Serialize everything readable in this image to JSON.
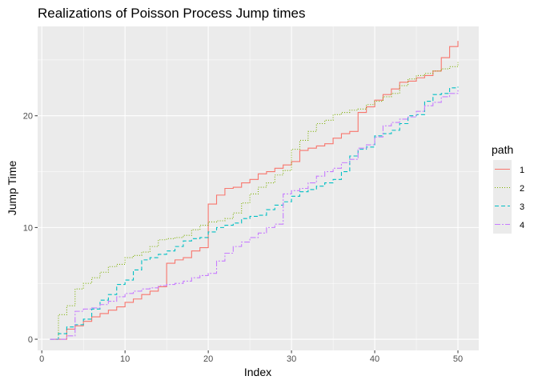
{
  "chart_data": {
    "type": "line",
    "step": true,
    "title": "Realizations of Poisson Process Jump times",
    "xlabel": "Index",
    "ylabel": "Jump Time",
    "xlim": [
      -0.5,
      52.5
    ],
    "ylim": [
      -1.0,
      28.0
    ],
    "x_ticks": [
      0,
      10,
      20,
      30,
      40,
      50
    ],
    "x_tick_labels": [
      "0",
      "10",
      "20",
      "30",
      "40",
      "50"
    ],
    "y_ticks": [
      0,
      10,
      20
    ],
    "y_tick_labels": [
      "0",
      "10",
      "20"
    ],
    "grid": true,
    "legend": {
      "title": "path",
      "position": "right"
    },
    "series": [
      {
        "name": "1",
        "color": "#F8766D",
        "dash": "solid",
        "x": [
          1,
          2,
          3,
          4,
          5,
          6,
          7,
          8,
          9,
          10,
          11,
          12,
          13,
          14,
          15,
          16,
          17,
          18,
          19,
          20,
          21,
          22,
          23,
          24,
          25,
          26,
          27,
          28,
          29,
          30,
          31,
          32,
          33,
          34,
          35,
          36,
          37,
          38,
          39,
          40,
          41,
          42,
          43,
          44,
          45,
          46,
          47,
          48,
          49,
          50
        ],
        "y": [
          0.0,
          0.0,
          0.9,
          1.2,
          1.6,
          2.0,
          2.3,
          2.6,
          2.9,
          3.3,
          3.6,
          4.0,
          4.3,
          4.7,
          6.8,
          7.1,
          7.3,
          7.9,
          8.2,
          12.1,
          12.9,
          13.5,
          13.6,
          14.0,
          14.3,
          14.8,
          15.0,
          15.3,
          15.6,
          15.9,
          16.9,
          17.1,
          17.3,
          17.5,
          18.0,
          18.4,
          18.6,
          20.3,
          20.8,
          21.4,
          21.9,
          22.4,
          23.0,
          23.1,
          23.4,
          23.6,
          24.0,
          25.2,
          26.2,
          26.7
        ]
      },
      {
        "name": "2",
        "color": "#7CAE00",
        "dash": "1,2",
        "x": [
          1,
          2,
          3,
          4,
          5,
          6,
          7,
          8,
          9,
          10,
          11,
          12,
          13,
          14,
          15,
          16,
          17,
          18,
          19,
          20,
          21,
          22,
          23,
          24,
          25,
          26,
          27,
          28,
          29,
          30,
          31,
          32,
          33,
          34,
          35,
          36,
          37,
          38,
          39,
          40,
          41,
          42,
          43,
          44,
          45,
          46,
          47,
          48,
          49,
          50
        ],
        "y": [
          0.0,
          2.2,
          3.0,
          4.5,
          5.0,
          5.5,
          6.0,
          6.5,
          6.7,
          7.3,
          7.5,
          7.8,
          8.3,
          8.9,
          9.0,
          9.1,
          9.3,
          9.8,
          10.2,
          10.5,
          10.6,
          10.8,
          11.3,
          12.2,
          13.0,
          13.6,
          14.0,
          14.7,
          15.1,
          17.0,
          17.8,
          18.6,
          19.3,
          19.6,
          20.1,
          20.3,
          20.5,
          20.6,
          21.0,
          21.3,
          21.7,
          22.0,
          22.7,
          23.3,
          23.6,
          23.8,
          24.0,
          24.2,
          24.4,
          24.8
        ]
      },
      {
        "name": "3",
        "color": "#00BFC4",
        "dash": "5,3",
        "x": [
          1,
          2,
          3,
          4,
          5,
          6,
          7,
          8,
          9,
          10,
          11,
          12,
          13,
          14,
          15,
          16,
          17,
          18,
          19,
          20,
          21,
          22,
          23,
          24,
          25,
          26,
          27,
          28,
          29,
          30,
          31,
          32,
          33,
          34,
          35,
          36,
          37,
          38,
          39,
          40,
          41,
          42,
          43,
          44,
          45,
          46,
          47,
          48,
          49,
          50
        ],
        "y": [
          0.0,
          0.5,
          1.1,
          1.3,
          1.8,
          2.7,
          3.5,
          4.0,
          4.9,
          5.3,
          6.2,
          7.1,
          7.3,
          7.6,
          7.9,
          8.3,
          8.8,
          9.0,
          9.1,
          9.6,
          10.0,
          10.2,
          10.4,
          10.8,
          11.0,
          11.1,
          11.6,
          12.0,
          12.3,
          12.8,
          13.2,
          13.4,
          13.7,
          14.0,
          14.3,
          15.0,
          16.4,
          17.0,
          17.2,
          18.2,
          18.4,
          18.7,
          19.3,
          20.0,
          20.1,
          21.3,
          21.9,
          22.0,
          22.5,
          22.6
        ]
      },
      {
        "name": "4",
        "color": "#C77CFF",
        "dash": "7,2,2,2",
        "x": [
          1,
          2,
          3,
          4,
          5,
          6,
          7,
          8,
          9,
          10,
          11,
          12,
          13,
          14,
          15,
          16,
          17,
          18,
          19,
          20,
          21,
          22,
          23,
          24,
          25,
          26,
          27,
          28,
          29,
          30,
          31,
          32,
          33,
          34,
          35,
          36,
          37,
          38,
          39,
          40,
          41,
          42,
          43,
          44,
          45,
          46,
          47,
          48,
          49,
          50
        ],
        "y": [
          0.0,
          0.0,
          0.3,
          2.5,
          2.7,
          2.8,
          3.1,
          3.4,
          3.8,
          4.1,
          4.3,
          4.5,
          4.6,
          4.8,
          4.9,
          5.0,
          5.2,
          5.5,
          5.7,
          5.9,
          7.0,
          7.7,
          8.3,
          8.7,
          9.1,
          9.5,
          10.0,
          10.3,
          13.0,
          13.3,
          13.5,
          14.0,
          14.6,
          15.0,
          15.3,
          15.8,
          16.1,
          17.1,
          17.4,
          18.1,
          19.1,
          19.4,
          19.7,
          19.9,
          20.4,
          20.9,
          21.2,
          21.7,
          22.0,
          22.3
        ]
      }
    ]
  }
}
